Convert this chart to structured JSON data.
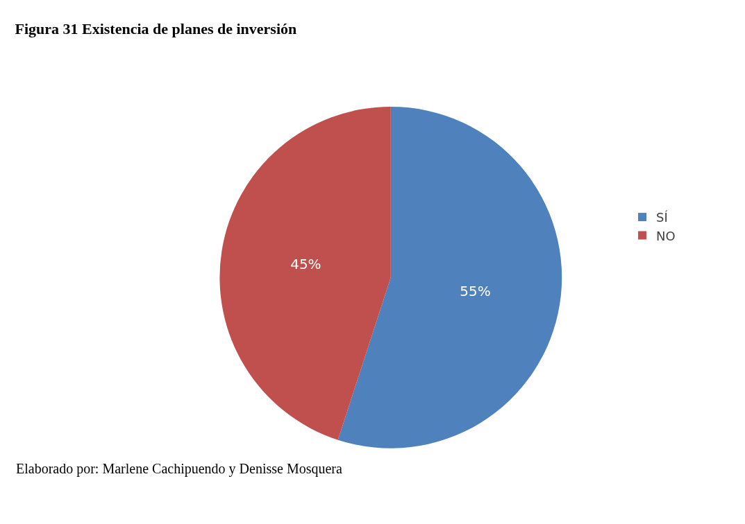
{
  "chart_data": {
    "type": "pie",
    "title": "Figura 31 Existencia de planes de inversión",
    "categories": [
      "SÍ",
      "NO"
    ],
    "values": [
      55,
      45
    ],
    "colors": [
      "#4f81bd",
      "#c0504d"
    ],
    "value_labels": [
      "55%",
      "45%"
    ],
    "legend": "right",
    "annotations": [
      "Elaborado por: Marlene Cachipuendo y Denisse Mosquera"
    ]
  }
}
